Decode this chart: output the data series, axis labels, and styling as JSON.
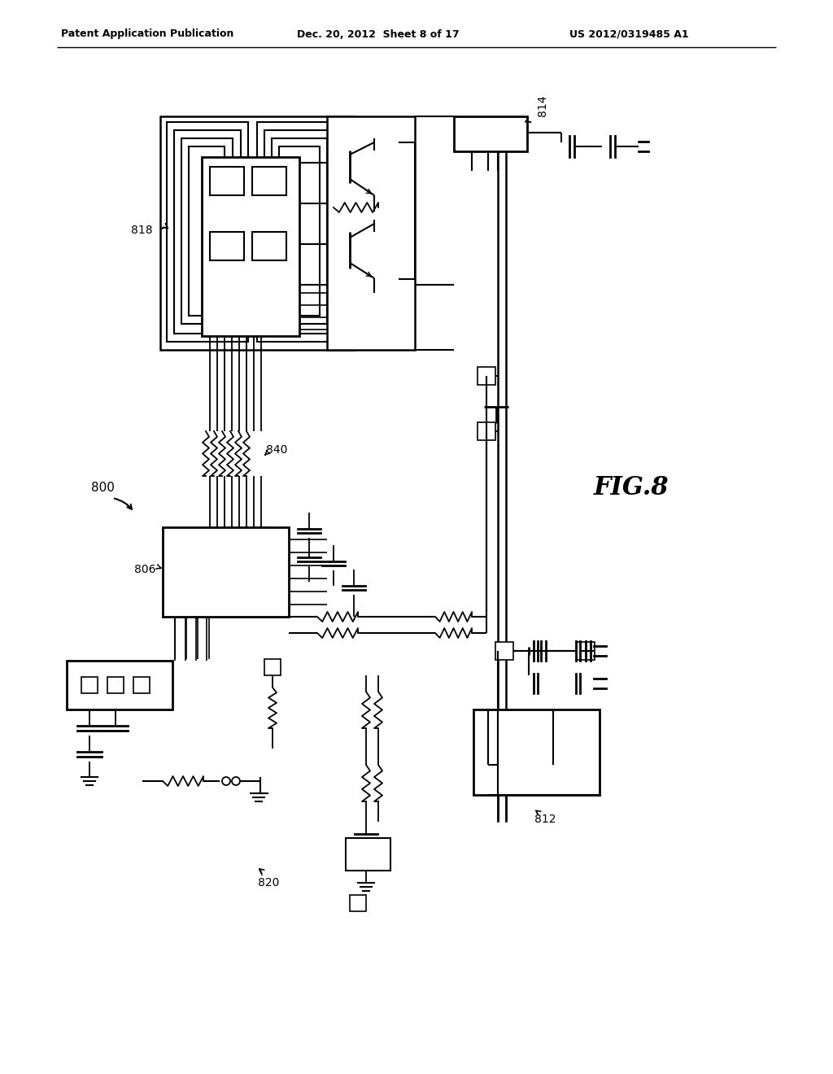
{
  "bg_color": "#ffffff",
  "header_left": "Patent Application Publication",
  "header_center": "Dec. 20, 2012  Sheet 8 of 17",
  "header_right": "US 2012/0319485 A1",
  "fig_label": "FIG.8"
}
